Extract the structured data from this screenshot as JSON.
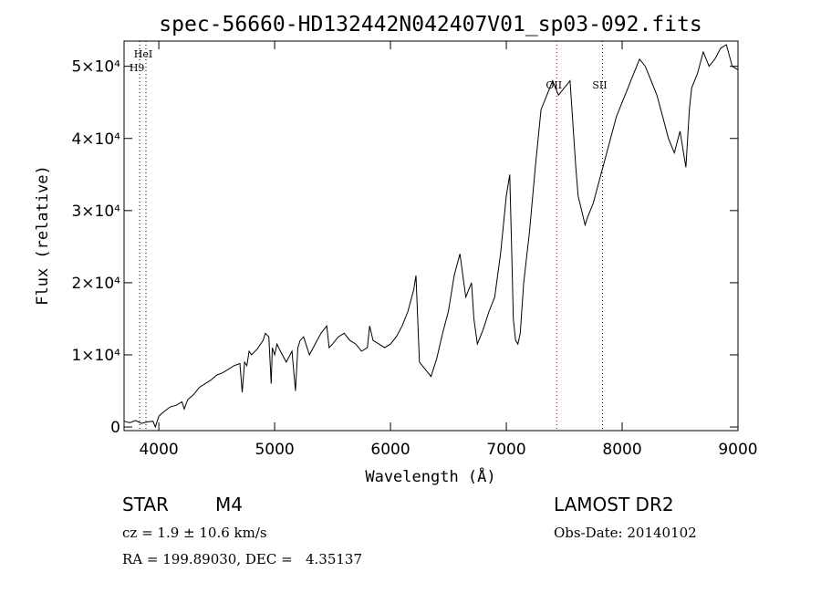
{
  "chart_data": {
    "type": "line",
    "title": "spec-56660-HD132442N042407V01_sp03-092.fits",
    "xlabel": "Wavelength (Å)",
    "ylabel": "Flux (relative)",
    "xlim": [
      3700,
      9000
    ],
    "ylim": [
      -500,
      53500
    ],
    "x_ticks": [
      4000,
      5000,
      6000,
      7000,
      8000,
      9000
    ],
    "y_ticks": [
      {
        "value": 0,
        "label": "0"
      },
      {
        "value": 10000,
        "label": "1×10⁴"
      },
      {
        "value": 20000,
        "label": "2×10⁴"
      },
      {
        "value": 30000,
        "label": "3×10⁴"
      },
      {
        "value": 40000,
        "label": "4×10⁴"
      },
      {
        "value": 50000,
        "label": "5×10⁴"
      }
    ],
    "grid": false,
    "line_annotations": [
      {
        "label": "HeI",
        "x": 3889,
        "label_position": "top",
        "color": "#000000"
      },
      {
        "label": "H9",
        "x": 3835,
        "label_position": "top",
        "color": "#000000"
      },
      {
        "label": "OII",
        "x": 7435,
        "label_position": "top",
        "color": "#cc0000"
      },
      {
        "label": "SII",
        "x": 7830,
        "label_position": "top",
        "color": "#000000"
      }
    ],
    "series": [
      {
        "color": "#000000",
        "x": [
          3700,
          3750,
          3800,
          3850,
          3900,
          3950,
          3970,
          4000,
          4050,
          4100,
          4150,
          4200,
          4220,
          4250,
          4300,
          4350,
          4400,
          4450,
          4500,
          4550,
          4600,
          4650,
          4700,
          4720,
          4740,
          4760,
          4780,
          4800,
          4850,
          4900,
          4920,
          4950,
          4970,
          4980,
          5000,
          5020,
          5050,
          5100,
          5150,
          5180,
          5200,
          5220,
          5250,
          5300,
          5350,
          5400,
          5450,
          5470,
          5500,
          5550,
          5600,
          5650,
          5700,
          5750,
          5800,
          5820,
          5850,
          5900,
          5950,
          6000,
          6050,
          6100,
          6150,
          6200,
          6220,
          6250,
          6300,
          6350,
          6400,
          6450,
          6500,
          6520,
          6550,
          6600,
          6650,
          6700,
          6720,
          6750,
          6800,
          6850,
          6900,
          6950,
          7000,
          7030,
          7050,
          7060,
          7080,
          7100,
          7120,
          7150,
          7200,
          7250,
          7300,
          7350,
          7400,
          7450,
          7500,
          7550,
          7600,
          7620,
          7650,
          7680,
          7700,
          7750,
          7800,
          7850,
          7900,
          7950,
          8000,
          8050,
          8100,
          8150,
          8200,
          8250,
          8300,
          8350,
          8400,
          8450,
          8500,
          8550,
          8580,
          8600,
          8650,
          8700,
          8750,
          8800,
          8850,
          8900,
          8950,
          9000
        ],
        "y": [
          800,
          600,
          900,
          500,
          700,
          800,
          0,
          1500,
          2200,
          2800,
          3000,
          3500,
          2500,
          3800,
          4500,
          5500,
          6000,
          6500,
          7200,
          7500,
          8000,
          8500,
          8800,
          4800,
          9000,
          8500,
          10500,
          10000,
          10800,
          12000,
          13000,
          12500,
          6000,
          11000,
          10000,
          11500,
          10500,
          9000,
          10500,
          5000,
          11000,
          12000,
          12500,
          10000,
          11500,
          13000,
          14000,
          11000,
          11500,
          12500,
          13000,
          12000,
          11500,
          10500,
          11000,
          14000,
          12000,
          11500,
          11000,
          11500,
          12500,
          14000,
          16000,
          19000,
          21000,
          9000,
          8000,
          7000,
          9500,
          13000,
          16000,
          18000,
          21000,
          24000,
          18000,
          20000,
          15000,
          11500,
          13500,
          16000,
          18000,
          24000,
          32000,
          35000,
          22000,
          15000,
          12000,
          11500,
          13000,
          20000,
          27000,
          36000,
          44000,
          46000,
          48000,
          46000,
          47000,
          48000,
          36000,
          32000,
          30000,
          28000,
          29000,
          31000,
          34000,
          37000,
          40000,
          43000,
          45000,
          47000,
          49000,
          51000,
          50000,
          48000,
          46000,
          43000,
          40000,
          38000,
          41000,
          36000,
          44000,
          47000,
          49000,
          52000,
          50000,
          51000,
          52500,
          53000,
          50000,
          49500
        ]
      }
    ]
  },
  "info": {
    "object_class": "STAR",
    "subclass": "M4",
    "survey": "LAMOST DR2",
    "redshift": "cz = 1.9 ± 10.6 km/s",
    "obs_date": "Obs-Date: 20140102",
    "coordinates": "RA = 199.89030, DEC =   4.35137"
  }
}
